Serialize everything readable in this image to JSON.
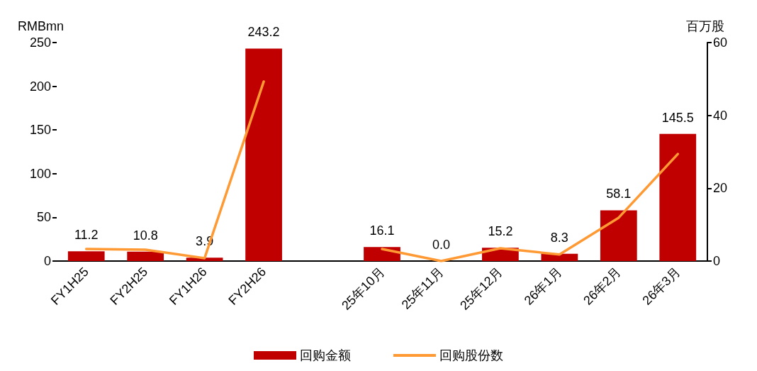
{
  "chart_data": {
    "type": "bar",
    "ylabel": "RMBmn",
    "y2label": "百万股",
    "categories": [
      "FY1H25",
      "FY2H25",
      "FY1H26",
      "FY2H26",
      null,
      "25年10月",
      "25年11月",
      "25年12月",
      "26年1月",
      "26年2月",
      "26年3月"
    ],
    "series": [
      {
        "name": "回购金额",
        "color": "#c00000",
        "values": [
          11.2,
          10.8,
          3.9,
          243.2,
          null,
          16.1,
          0.0,
          15.2,
          8.3,
          58.1,
          145.5
        ],
        "value_labels": [
          "11.2",
          "10.8",
          "3.9",
          "243.2",
          null,
          "16.1",
          "0.0",
          "15.2",
          "8.3",
          "58.1",
          "145.5"
        ]
      },
      {
        "name": "回购股份数",
        "type": "line",
        "axis": "y2",
        "color": "#ff9933",
        "values": [
          3.3,
          3.1,
          0.8,
          49.3,
          null,
          3.3,
          0,
          3.5,
          1.8,
          11.9,
          29.4
        ]
      }
    ],
    "ylim": [
      0,
      250
    ],
    "yticks": [
      0,
      50,
      100,
      150,
      200,
      250
    ],
    "y2lim": [
      0,
      60
    ],
    "y2ticks": [
      0,
      20,
      40,
      60
    ],
    "grid": false,
    "legend": "bottom",
    "marker": "none",
    "line_style": "solid"
  }
}
